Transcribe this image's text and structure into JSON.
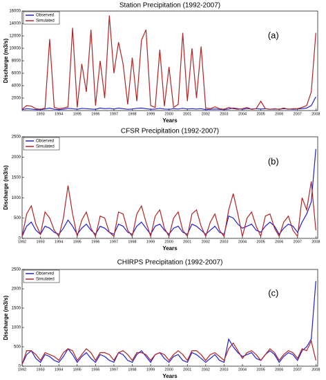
{
  "chart_data": [
    {
      "type": "line",
      "title": "Station Precipitation (1992-2007)",
      "annotation": "(a)",
      "x_label": "Years",
      "y_label": "Discharge (m3/s)",
      "xlim": [
        1992,
        2008.1
      ],
      "xticks": [
        1993,
        1994,
        1995,
        1996,
        1997,
        1998,
        1999,
        2000,
        2001,
        2002,
        2003,
        2004,
        2005,
        2006,
        2007,
        2008
      ],
      "ylim": [
        0,
        16000
      ],
      "yticks": [
        2000,
        4000,
        6000,
        8000,
        10000,
        12000,
        14000,
        16000
      ],
      "x": [
        1992,
        1992.25,
        1992.5,
        1992.75,
        1993,
        1993.25,
        1993.5,
        1993.75,
        1994,
        1994.25,
        1994.5,
        1994.75,
        1995,
        1995.25,
        1995.5,
        1995.75,
        1996,
        1996.25,
        1996.5,
        1996.75,
        1997,
        1997.25,
        1997.5,
        1997.75,
        1998,
        1998.25,
        1998.5,
        1998.75,
        1999,
        1999.25,
        1999.5,
        1999.75,
        2000,
        2000.25,
        2000.5,
        2000.75,
        2001,
        2001.25,
        2001.5,
        2001.75,
        2002,
        2002.25,
        2002.5,
        2002.75,
        2003,
        2003.25,
        2003.5,
        2003.75,
        2004,
        2004.25,
        2004.5,
        2004.75,
        2005,
        2005.25,
        2005.5,
        2005.75,
        2006,
        2006.25,
        2006.5,
        2006.75,
        2007,
        2007.25,
        2007.5,
        2007.75,
        2008
      ],
      "series": [
        {
          "name": "Observed",
          "color": "#1f1fd6",
          "values": [
            150,
            300,
            250,
            150,
            150,
            250,
            400,
            200,
            150,
            200,
            350,
            300,
            200,
            350,
            300,
            250,
            200,
            400,
            300,
            350,
            250,
            400,
            300,
            200,
            250,
            350,
            400,
            300,
            200,
            250,
            350,
            250,
            200,
            300,
            250,
            350,
            250,
            300,
            250,
            300,
            150,
            200,
            250,
            200,
            150,
            250,
            400,
            300,
            200,
            300,
            250,
            300,
            250,
            300,
            200,
            250,
            200,
            300,
            250,
            200,
            250,
            300,
            400,
            800,
            2200
          ]
        },
        {
          "name": "Simulated",
          "color": "#b22222",
          "values": [
            200,
            800,
            700,
            300,
            200,
            400,
            11500,
            500,
            300,
            400,
            600,
            13300,
            500,
            7500,
            3000,
            13000,
            800,
            8000,
            2000,
            15300,
            6000,
            11000,
            7500,
            1000,
            8500,
            1500,
            11300,
            13000,
            800,
            500,
            9800,
            700,
            7000,
            500,
            1000,
            12500,
            1500,
            10000,
            2000,
            10300,
            400,
            300,
            600,
            300,
            200,
            500,
            300,
            200,
            300,
            500,
            200,
            300,
            1500,
            300,
            200,
            300,
            200,
            400,
            200,
            300,
            300,
            500,
            800,
            3000,
            12500
          ]
        }
      ]
    },
    {
      "type": "line",
      "title": "CFSR Precipitation (1992-2007)",
      "annotation": "(b)",
      "x_label": "Years",
      "y_label": "Discharge (m3/s)",
      "xlim": [
        1992,
        2008.1
      ],
      "xticks": [
        1992,
        1993,
        1994,
        1995,
        1996,
        1997,
        1998,
        1999,
        2000,
        2001,
        2002,
        2003,
        2004,
        2005,
        2006,
        2007,
        2008
      ],
      "ylim": [
        0,
        2500
      ],
      "yticks": [
        0,
        500,
        1000,
        1500,
        2000,
        2500
      ],
      "x": [
        1992,
        1992.25,
        1992.5,
        1992.75,
        1993,
        1993.25,
        1993.5,
        1993.75,
        1994,
        1994.25,
        1994.5,
        1994.75,
        1995,
        1995.25,
        1995.5,
        1995.75,
        1996,
        1996.25,
        1996.5,
        1996.75,
        1997,
        1997.25,
        1997.5,
        1997.75,
        1998,
        1998.25,
        1998.5,
        1998.75,
        1999,
        1999.25,
        1999.5,
        1999.75,
        2000,
        2000.25,
        2000.5,
        2000.75,
        2001,
        2001.25,
        2001.5,
        2001.75,
        2002,
        2002.25,
        2002.5,
        2002.75,
        2003,
        2003.25,
        2003.5,
        2003.75,
        2004,
        2004.25,
        2004.5,
        2004.75,
        2005,
        2005.25,
        2005.5,
        2005.75,
        2006,
        2006.25,
        2006.5,
        2006.75,
        2007,
        2007.25,
        2007.5,
        2007.75,
        2008
      ],
      "series": [
        {
          "name": "Observed",
          "color": "#1f1fd6",
          "values": [
            50,
            300,
            400,
            200,
            100,
            300,
            250,
            150,
            100,
            250,
            450,
            300,
            100,
            250,
            350,
            200,
            100,
            300,
            250,
            150,
            100,
            350,
            300,
            150,
            100,
            300,
            400,
            250,
            100,
            300,
            350,
            200,
            100,
            250,
            300,
            150,
            100,
            350,
            300,
            200,
            100,
            200,
            300,
            150,
            100,
            550,
            500,
            350,
            250,
            300,
            350,
            200,
            150,
            300,
            400,
            300,
            100,
            250,
            350,
            300,
            150,
            400,
            600,
            900,
            2200
          ]
        },
        {
          "name": "Simulated",
          "color": "#b22222",
          "values": [
            50,
            600,
            800,
            350,
            100,
            650,
            500,
            200,
            50,
            500,
            1300,
            600,
            50,
            450,
            650,
            250,
            50,
            550,
            500,
            150,
            50,
            650,
            600,
            200,
            50,
            600,
            800,
            400,
            50,
            550,
            700,
            250,
            50,
            500,
            650,
            200,
            50,
            600,
            700,
            300,
            50,
            400,
            600,
            200,
            50,
            700,
            1100,
            600,
            50,
            500,
            650,
            300,
            50,
            550,
            600,
            250,
            50,
            400,
            550,
            200,
            50,
            1000,
            700,
            1400,
            200
          ]
        }
      ]
    },
    {
      "type": "line",
      "title": "CHIRPS Precipitation (1992-2007)",
      "annotation": "(c)",
      "x_label": "Years",
      "y_label": "Discharge (m3/s)",
      "xlim": [
        1992,
        2008.1
      ],
      "xticks": [
        1992,
        1993,
        1994,
        1995,
        1996,
        1997,
        1998,
        1999,
        2000,
        2001,
        2002,
        2003,
        2004,
        2005,
        2006,
        2007,
        2008
      ],
      "ylim": [
        0,
        2500
      ],
      "yticks": [
        0,
        500,
        1000,
        1500,
        2000,
        2500
      ],
      "x": [
        1992,
        1992.25,
        1992.5,
        1992.75,
        1993,
        1993.25,
        1993.5,
        1993.75,
        1994,
        1994.25,
        1994.5,
        1994.75,
        1995,
        1995.25,
        1995.5,
        1995.75,
        1996,
        1996.25,
        1996.5,
        1996.75,
        1997,
        1997.25,
        1997.5,
        1997.75,
        1998,
        1998.25,
        1998.5,
        1998.75,
        1999,
        1999.25,
        1999.5,
        1999.75,
        2000,
        2000.25,
        2000.5,
        2000.75,
        2001,
        2001.25,
        2001.5,
        2001.75,
        2002,
        2002.25,
        2002.5,
        2002.75,
        2003,
        2003.25,
        2003.5,
        2003.75,
        2004,
        2004.25,
        2004.5,
        2004.75,
        2005,
        2005.25,
        2005.5,
        2005.75,
        2006,
        2006.25,
        2006.5,
        2006.75,
        2007,
        2007.25,
        2007.5,
        2007.75,
        2008
      ],
      "series": [
        {
          "name": "Observed",
          "color": "#1f1fd6",
          "values": [
            50,
            300,
            400,
            200,
            100,
            300,
            250,
            150,
            100,
            250,
            450,
            300,
            100,
            250,
            350,
            200,
            100,
            300,
            250,
            150,
            100,
            350,
            300,
            150,
            100,
            300,
            400,
            250,
            100,
            300,
            350,
            200,
            100,
            250,
            300,
            150,
            100,
            350,
            300,
            200,
            100,
            200,
            300,
            150,
            100,
            700,
            500,
            350,
            250,
            300,
            350,
            200,
            150,
            300,
            400,
            300,
            100,
            250,
            350,
            300,
            150,
            400,
            500,
            700,
            2200
          ]
        },
        {
          "name": "Simulated",
          "color": "#b22222",
          "values": [
            50,
            400,
            400,
            300,
            150,
            350,
            300,
            250,
            150,
            350,
            450,
            400,
            150,
            300,
            450,
            350,
            150,
            350,
            350,
            300,
            150,
            350,
            400,
            300,
            150,
            350,
            350,
            300,
            150,
            300,
            350,
            300,
            150,
            300,
            400,
            300,
            150,
            400,
            400,
            300,
            150,
            300,
            350,
            250,
            150,
            450,
            600,
            400,
            200,
            350,
            400,
            300,
            150,
            300,
            450,
            350,
            150,
            300,
            400,
            350,
            200,
            450,
            400,
            650,
            150
          ]
        }
      ]
    }
  ]
}
